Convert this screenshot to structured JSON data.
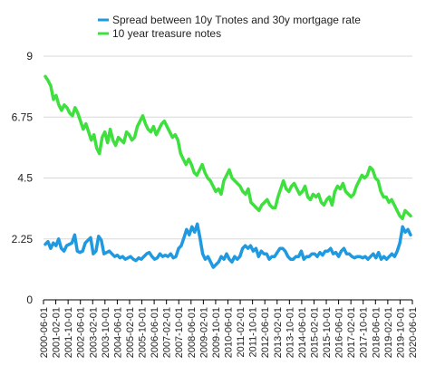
{
  "chart_data": {
    "type": "line",
    "ylim": [
      0,
      9
    ],
    "yticks": [
      "0",
      "2.25",
      "4.5",
      "6.75",
      "9"
    ],
    "grid": "horizontal",
    "legend_placement": "top",
    "xticks": [
      "2000-06-01",
      "2001-02-01",
      "2001-10-01",
      "2002-06-01",
      "2003-02-01",
      "2003-10-01",
      "2004-06-01",
      "2005-02-01",
      "2005-10-01",
      "2006-06-01",
      "2007-02-01",
      "2007-10-01",
      "2008-06-01",
      "2009-02-01",
      "2009-10-01",
      "2010-06-01",
      "2011-02-01",
      "2011-10-01",
      "2012-06-01",
      "2013-02-01",
      "2013-10-01",
      "2014-06-01",
      "2015-02-01",
      "2015-10-01",
      "2016-06-01",
      "2017-02-01",
      "2017-10-01",
      "2018-06-01",
      "2019-02-01",
      "2019-10-01",
      "2020-06-01"
    ],
    "series": [
      {
        "name": "Spread between 10y Tnotes and 30y mortgage rate",
        "color": "#1f9ae0",
        "values": [
          2.05,
          2.15,
          1.9,
          2.1,
          2.0,
          2.25,
          1.9,
          1.8,
          2.0,
          2.05,
          2.1,
          2.4,
          1.8,
          1.75,
          1.8,
          2.1,
          2.2,
          2.3,
          1.7,
          1.8,
          2.35,
          2.2,
          1.7,
          1.75,
          1.8,
          1.7,
          1.6,
          1.65,
          1.55,
          1.6,
          1.5,
          1.55,
          1.6,
          1.5,
          1.45,
          1.55,
          1.5,
          1.6,
          1.7,
          1.75,
          1.6,
          1.5,
          1.55,
          1.7,
          1.6,
          1.65,
          1.6,
          1.7,
          1.55,
          1.6,
          1.9,
          2.0,
          2.3,
          2.6,
          2.4,
          2.7,
          2.5,
          2.8,
          2.3,
          1.7,
          1.5,
          1.6,
          1.4,
          1.2,
          1.3,
          1.4,
          1.6,
          1.5,
          1.7,
          1.5,
          1.4,
          1.6,
          1.5,
          1.6,
          1.9,
          2.0,
          1.9,
          2.0,
          1.8,
          1.9,
          1.6,
          1.8,
          1.7,
          1.7,
          1.5,
          1.6,
          1.6,
          1.75,
          1.9,
          1.9,
          1.8,
          1.6,
          1.5,
          1.5,
          1.6,
          1.6,
          1.8,
          1.5,
          1.6,
          1.6,
          1.7,
          1.7,
          1.6,
          1.75,
          1.65,
          1.8,
          1.8,
          1.9,
          1.7,
          1.75,
          1.6,
          1.8,
          1.9,
          1.7,
          1.7,
          1.6,
          1.55,
          1.6,
          1.6,
          1.55,
          1.6,
          1.5,
          1.6,
          1.7,
          1.55,
          1.75,
          1.5,
          1.6,
          1.5,
          1.6,
          1.7,
          1.6,
          1.8,
          2.1,
          2.7,
          2.5,
          2.6,
          2.4
        ]
      },
      {
        "name": "10 year treasure notes",
        "color": "#3ee03e",
        "values": [
          8.25,
          8.1,
          7.9,
          7.4,
          7.55,
          7.2,
          7.0,
          7.2,
          7.1,
          6.9,
          6.8,
          7.1,
          6.9,
          6.6,
          6.3,
          6.5,
          6.2,
          5.9,
          6.1,
          5.6,
          5.4,
          6.0,
          6.2,
          5.8,
          6.3,
          5.9,
          5.7,
          6.0,
          5.9,
          5.8,
          6.2,
          6.1,
          5.9,
          6.0,
          6.4,
          6.6,
          6.8,
          6.5,
          6.3,
          6.2,
          6.4,
          6.1,
          6.3,
          6.5,
          6.6,
          6.4,
          6.2,
          6.0,
          6.1,
          5.9,
          5.4,
          5.2,
          5.0,
          5.2,
          5.0,
          4.7,
          4.6,
          4.8,
          5.0,
          4.7,
          4.5,
          4.4,
          4.2,
          4.0,
          4.1,
          3.9,
          4.4,
          4.6,
          4.8,
          4.5,
          4.4,
          4.3,
          4.2,
          4.0,
          3.9,
          4.1,
          3.6,
          3.5,
          3.4,
          3.3,
          3.5,
          3.6,
          3.7,
          3.5,
          3.4,
          3.4,
          3.8,
          4.1,
          4.4,
          4.1,
          4.0,
          4.2,
          4.3,
          4.1,
          3.9,
          4.0,
          4.2,
          3.8,
          3.7,
          3.9,
          3.8,
          3.9,
          3.6,
          3.5,
          3.7,
          3.8,
          3.5,
          4.0,
          4.2,
          4.1,
          4.3,
          4.0,
          3.9,
          3.8,
          3.9,
          4.2,
          4.4,
          4.6,
          4.5,
          4.6,
          4.9,
          4.8,
          4.5,
          4.4,
          4.0,
          3.8,
          3.8,
          3.6,
          3.7,
          3.5,
          3.3,
          3.1,
          3.0,
          3.3,
          3.2,
          3.1
        ]
      }
    ]
  }
}
